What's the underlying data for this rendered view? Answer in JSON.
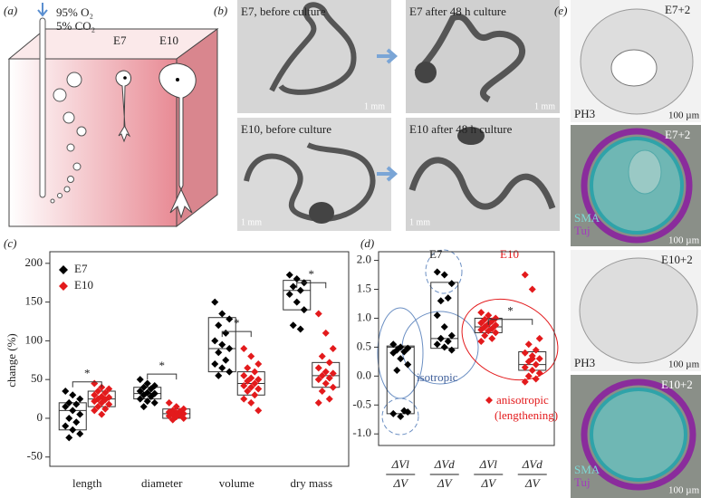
{
  "panels": {
    "a": {
      "label": "(a)",
      "gas": [
        "95% O₂",
        "5% CO₂"
      ],
      "stages": [
        "E7",
        "E10"
      ]
    },
    "b": {
      "label": "(b)",
      "captions": [
        "E7, before culture",
        "E7 after 48 h culture",
        "E10, before culture",
        "E10 after 48 h culture"
      ],
      "scale": "1 mm"
    },
    "e": {
      "label": "(e)",
      "stages": [
        "E7+2",
        "E7+2",
        "E10+2",
        "E10+2"
      ],
      "stains": [
        "PH3",
        "SMA",
        "Tuj"
      ],
      "scale": "100 µm"
    }
  },
  "chart_data": [
    {
      "type": "strip",
      "label": "(c)",
      "ylabel": "change (%)",
      "categories": [
        "length",
        "diameter",
        "volume",
        "dry mass"
      ],
      "ylim": [
        -62,
        215
      ],
      "yticks": [
        -50,
        0,
        50,
        100,
        150,
        200
      ],
      "series": [
        {
          "name": "E7",
          "color": "#000000",
          "values": [
            [
              35,
              30,
              25,
              20,
              18,
              15,
              10,
              5,
              0,
              -5,
              -10,
              -15,
              -20,
              -25
            ],
            [
              50,
              45,
              42,
              40,
              38,
              35,
              33,
              32,
              30,
              28,
              25,
              22,
              20,
              15
            ],
            [
              150,
              135,
              128,
              120,
              110,
              100,
              95,
              90,
              85,
              75,
              70,
              65,
              60,
              55
            ],
            [
              185,
              180,
              175,
              170,
              165,
              160,
              150,
              140,
              120,
              115
            ]
          ],
          "box": [
            [
              -15,
              10,
              20
            ],
            [
              25,
              32,
              40
            ],
            [
              60,
              90,
              130
            ],
            [
              140,
              165,
              178
            ]
          ]
        },
        {
          "name": "E10",
          "color": "#e31a1c",
          "values": [
            [
              45,
              40,
              38,
              35,
              33,
              30,
              28,
              27,
              25,
              24,
              22,
              20,
              18,
              15,
              12,
              10,
              5
            ],
            [
              20,
              15,
              12,
              10,
              9,
              8,
              7,
              6,
              5,
              4,
              3,
              2,
              0,
              -2
            ],
            [
              90,
              80,
              70,
              65,
              60,
              55,
              52,
              50,
              48,
              45,
              42,
              40,
              38,
              35,
              30,
              25,
              20,
              10
            ],
            [
              135,
              110,
              90,
              80,
              72,
              65,
              60,
              58,
              55,
              52,
              50,
              45,
              40,
              35,
              25,
              20
            ]
          ],
          "box": [
            [
              15,
              25,
              35
            ],
            [
              0,
              6,
              12
            ],
            [
              30,
              45,
              60
            ],
            [
              40,
              55,
              72
            ]
          ]
        }
      ],
      "significance": [
        {
          "categories": [
            0
          ],
          "y": 47,
          "label": "*"
        },
        {
          "categories": [
            1
          ],
          "y": 57,
          "label": "*"
        },
        {
          "categories": [
            2
          ],
          "y": 112,
          "label": "*"
        },
        {
          "categories": [
            3
          ],
          "y": 175,
          "label": "*"
        }
      ]
    },
    {
      "type": "strip",
      "label": "(d)",
      "categories": [
        "ΔVl",
        "ΔVd",
        "ΔVl",
        "ΔVd"
      ],
      "category_denominator": "ΔV",
      "ylim": [
        -1.2,
        2.15
      ],
      "yticks": [
        {
          "value": -1,
          "label": "-1.0"
        },
        -0.5,
        {
          "value": 0,
          "label": "0.0"
        },
        0.5,
        {
          "value": 1,
          "label": "1.0"
        },
        1.5,
        {
          "value": 2,
          "label": "2.0"
        }
      ],
      "series": [
        {
          "name": "E7",
          "color": "#000000",
          "values": [
            [
              0.55,
              0.5,
              0.48,
              0.45,
              0.42,
              0.4,
              0.3,
              0.2,
              0.1,
              -0.6,
              -0.65,
              -0.7,
              -0.62
            ],
            [
              1.8,
              1.75,
              1.6,
              1.3,
              1.35,
              1.05,
              0.85,
              0.7,
              0.65,
              0.6,
              0.55,
              0.5,
              0.45,
              0.65
            ],
            [],
            []
          ],
          "box": [
            [
              -0.65,
              0.5,
              0.52
            ],
            [
              0.48,
              0.65,
              1.62
            ],
            null,
            null
          ]
        },
        {
          "name": "E10",
          "color": "#e31a1c",
          "values": [
            [],
            [],
            [
              1.1,
              1.05,
              1.0,
              0.98,
              0.95,
              0.92,
              0.9,
              0.88,
              0.85,
              0.82,
              0.8,
              0.78,
              0.75,
              0.7,
              0.65,
              0.6,
              0.9
            ],
            [
              1.75,
              1.5,
              0.65,
              0.55,
              0.45,
              0.4,
              0.35,
              0.3,
              0.25,
              0.2,
              0.15,
              0.1,
              0.05,
              0,
              -0.05,
              -0.1,
              0.3
            ]
          ],
          "box": [
            null,
            null,
            [
              0.75,
              0.85,
              1.0
            ],
            [
              0.1,
              0.2,
              0.42
            ]
          ]
        }
      ],
      "significance": [
        {
          "categories": [
            2,
            3
          ],
          "y": 0.98,
          "label": "*"
        }
      ],
      "notes": [
        "isotropic",
        "anisotropic",
        "(lengthening)"
      ]
    }
  ]
}
